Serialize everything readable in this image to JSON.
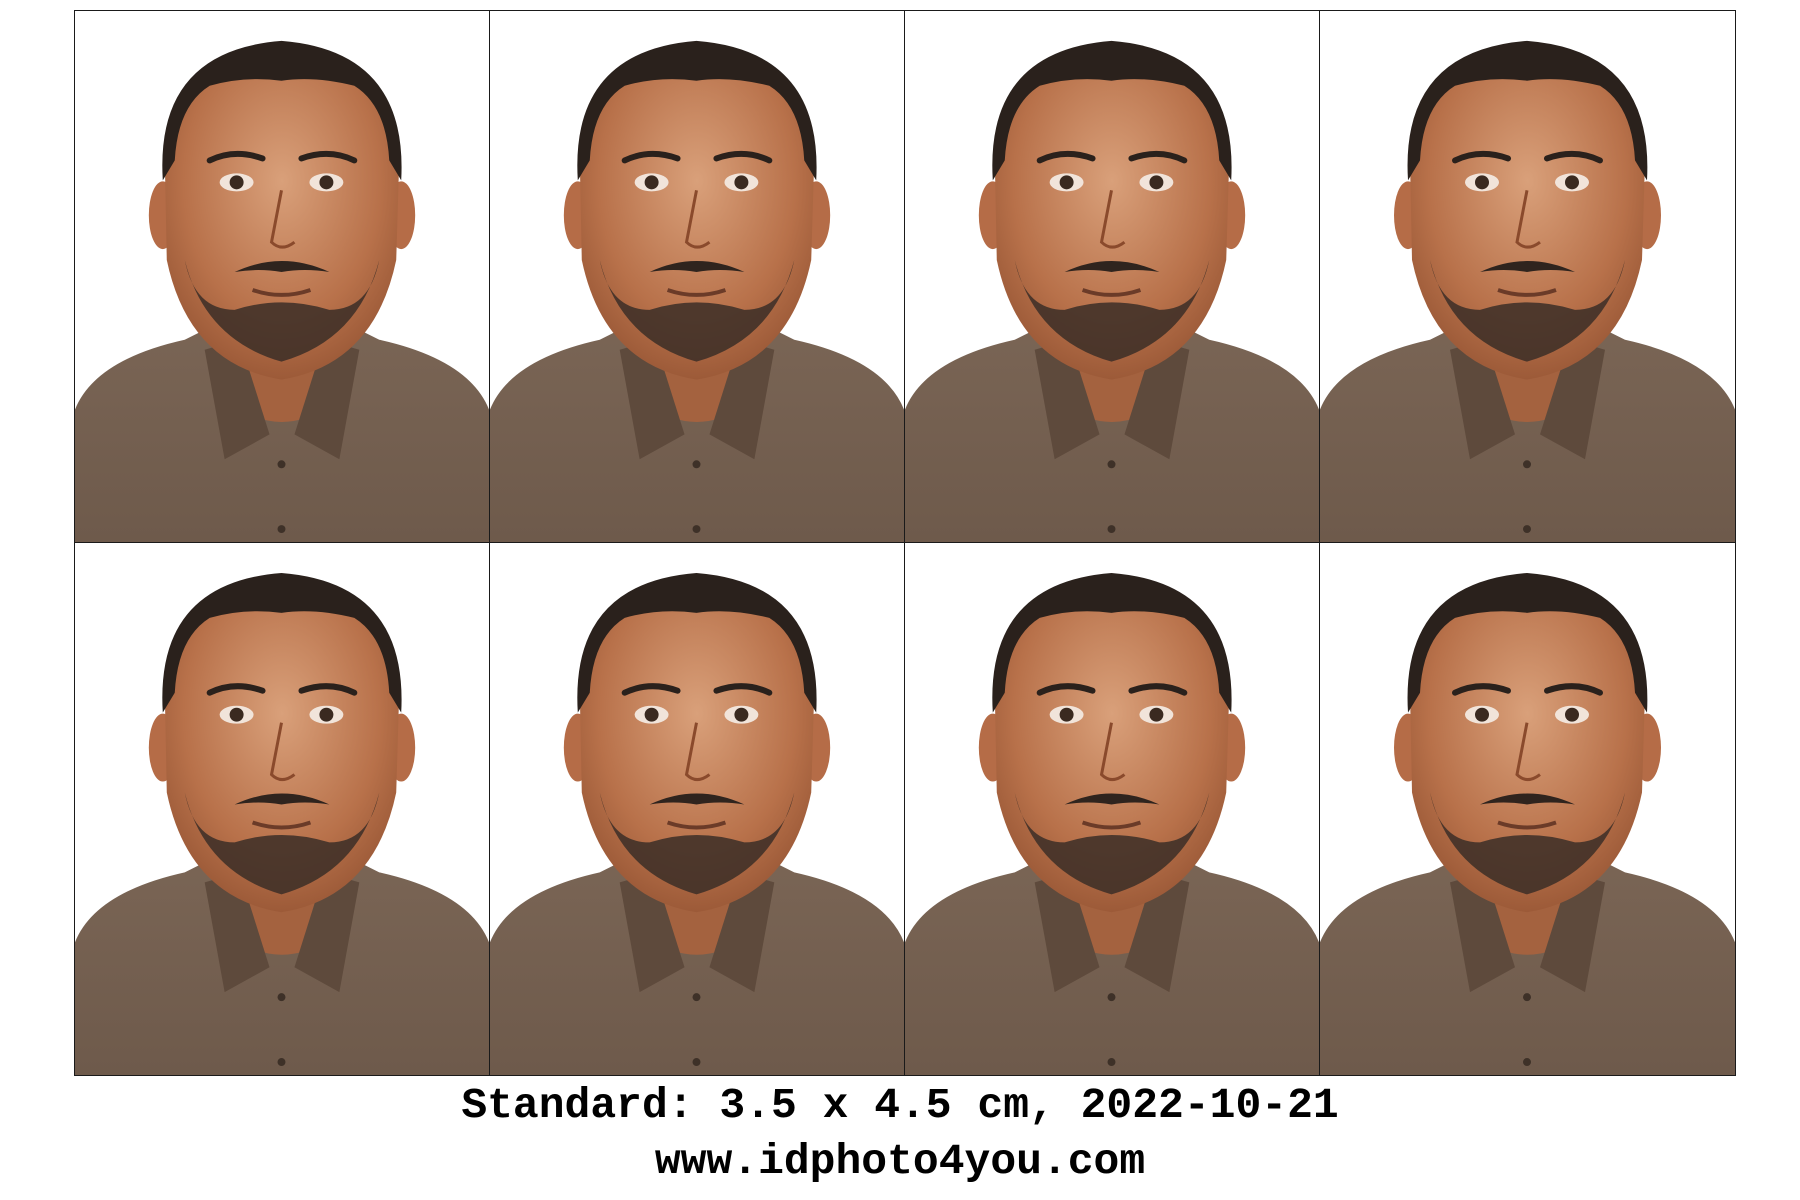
{
  "sheet": {
    "photo_count": 8,
    "columns": 4,
    "rows": 2,
    "background_color": "#ffffff",
    "border_color": "#1a1a1a",
    "photos": [
      {
        "subject": "man-passport-portrait",
        "shirt_color": "#6e5a4b"
      },
      {
        "subject": "man-passport-portrait",
        "shirt_color": "#6e5a4b"
      },
      {
        "subject": "man-passport-portrait",
        "shirt_color": "#6e5a4b"
      },
      {
        "subject": "man-passport-portrait",
        "shirt_color": "#6e5a4b"
      },
      {
        "subject": "man-passport-portrait",
        "shirt_color": "#6e5a4b"
      },
      {
        "subject": "man-passport-portrait",
        "shirt_color": "#6e5a4b"
      },
      {
        "subject": "man-passport-portrait",
        "shirt_color": "#6e5a4b"
      },
      {
        "subject": "man-passport-portrait",
        "shirt_color": "#6e5a4b"
      }
    ]
  },
  "caption": {
    "standard_line": "Standard: 3.5 x 4.5 cm, 2022-10-21",
    "website_line": "www.idphoto4you.com"
  }
}
